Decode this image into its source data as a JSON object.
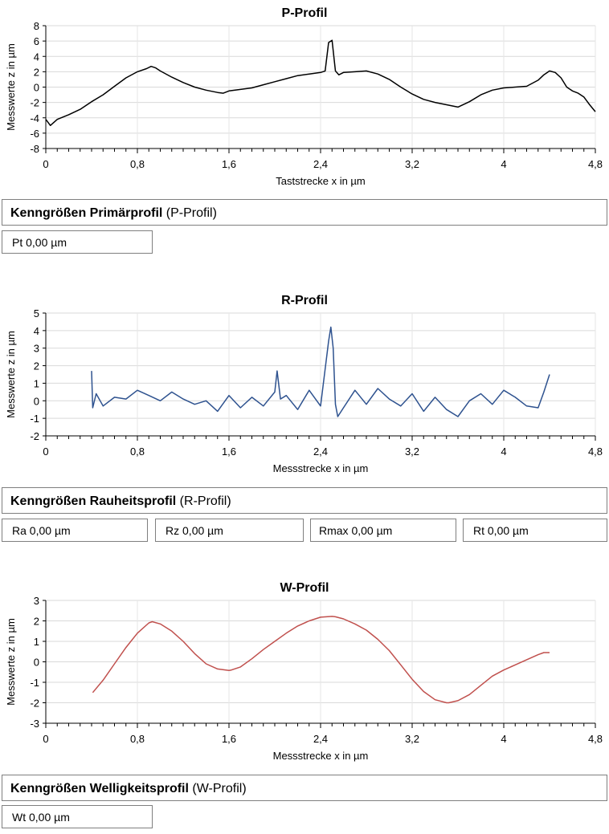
{
  "chart_data": [
    {
      "type": "line",
      "title": "P-Profil",
      "xlabel": "Taststrecke x in µm",
      "ylabel": "Messwerte z in µm",
      "xlim": [
        0,
        4.8
      ],
      "ylim": [
        -8,
        8
      ],
      "x_ticks": [
        "0",
        "0,8",
        "1,6",
        "2,4",
        "3,2",
        "4",
        "4,8"
      ],
      "y_ticks": [
        "8",
        "6",
        "4",
        "2",
        "0",
        "-2",
        "-4",
        "-6",
        "-8"
      ],
      "grid": "horizontal",
      "series": [
        {
          "color": "#000000",
          "x": [
            0.0,
            0.04,
            0.1,
            0.2,
            0.3,
            0.4,
            0.5,
            0.6,
            0.7,
            0.8,
            0.88,
            0.92,
            0.96,
            1.0,
            1.1,
            1.2,
            1.3,
            1.4,
            1.5,
            1.55,
            1.6,
            1.7,
            1.8,
            1.9,
            2.0,
            2.1,
            2.2,
            2.3,
            2.4,
            2.44,
            2.47,
            2.5,
            2.53,
            2.56,
            2.6,
            2.7,
            2.8,
            2.9,
            3.0,
            3.1,
            3.2,
            3.3,
            3.4,
            3.5,
            3.6,
            3.7,
            3.8,
            3.9,
            4.0,
            4.1,
            4.2,
            4.3,
            4.35,
            4.4,
            4.45,
            4.5,
            4.55,
            4.6,
            4.65,
            4.7,
            4.75,
            4.8
          ],
          "y": [
            -4.2,
            -5.0,
            -4.2,
            -3.6,
            -2.9,
            -1.9,
            -1.0,
            0.1,
            1.2,
            2.0,
            2.4,
            2.7,
            2.5,
            2.1,
            1.3,
            0.6,
            0.0,
            -0.4,
            -0.7,
            -0.8,
            -0.5,
            -0.3,
            -0.1,
            0.3,
            0.7,
            1.1,
            1.5,
            1.7,
            1.9,
            2.1,
            5.8,
            6.1,
            2.1,
            1.6,
            1.9,
            2.0,
            2.1,
            1.7,
            1.0,
            0.0,
            -0.9,
            -1.6,
            -2.0,
            -2.3,
            -2.6,
            -1.9,
            -1.0,
            -0.4,
            -0.1,
            0.0,
            0.1,
            0.9,
            1.6,
            2.1,
            1.9,
            1.2,
            0.0,
            -0.5,
            -0.8,
            -1.3,
            -2.3,
            -3.2
          ]
        }
      ]
    },
    {
      "type": "line",
      "title": "R-Profil",
      "xlabel": "Messstrecke x in µm",
      "ylabel": "Messwerte z in µm",
      "xlim": [
        0,
        4.8
      ],
      "ylim": [
        -2,
        5
      ],
      "x_ticks": [
        "0",
        "0,8",
        "1,6",
        "2,4",
        "3,2",
        "4",
        "4,8"
      ],
      "y_ticks": [
        "5",
        "4",
        "3",
        "2",
        "1",
        "0",
        "-1",
        "-2"
      ],
      "grid": "horizontal",
      "series": [
        {
          "color": "#2e528f",
          "x": [
            0.4,
            0.41,
            0.44,
            0.5,
            0.6,
            0.7,
            0.8,
            0.9,
            1.0,
            1.1,
            1.2,
            1.3,
            1.4,
            1.5,
            1.6,
            1.7,
            1.8,
            1.9,
            2.0,
            2.02,
            2.05,
            2.1,
            2.2,
            2.3,
            2.4,
            2.47,
            2.49,
            2.51,
            2.53,
            2.55,
            2.6,
            2.7,
            2.8,
            2.9,
            3.0,
            3.1,
            3.2,
            3.3,
            3.4,
            3.5,
            3.6,
            3.7,
            3.8,
            3.9,
            4.0,
            4.1,
            4.2,
            4.3,
            4.35,
            4.4
          ],
          "y": [
            1.7,
            -0.4,
            0.4,
            -0.3,
            0.2,
            0.1,
            0.6,
            0.3,
            0.0,
            0.5,
            0.1,
            -0.2,
            0.0,
            -0.6,
            0.3,
            -0.4,
            0.2,
            -0.3,
            0.5,
            1.7,
            0.1,
            0.3,
            -0.5,
            0.6,
            -0.3,
            3.4,
            4.2,
            3.0,
            -0.2,
            -0.9,
            -0.4,
            0.6,
            -0.2,
            0.7,
            0.1,
            -0.3,
            0.4,
            -0.6,
            0.2,
            -0.5,
            -0.9,
            0.0,
            0.4,
            -0.2,
            0.6,
            0.2,
            -0.3,
            -0.4,
            0.5,
            1.5
          ]
        }
      ]
    },
    {
      "type": "line",
      "title": "W-Profil",
      "xlabel": "Messstrecke x in µm",
      "ylabel": "Messwerte z in µm",
      "xlim": [
        0,
        4.8
      ],
      "ylim": [
        -3,
        3
      ],
      "x_ticks": [
        "0",
        "0,8",
        "1,6",
        "2,4",
        "3,2",
        "4",
        "4,8"
      ],
      "y_ticks": [
        "3",
        "2",
        "1",
        "0",
        "-1",
        "-2",
        "-3"
      ],
      "grid": "horizontal",
      "series": [
        {
          "color": "#c0504d",
          "x": [
            0.41,
            0.5,
            0.6,
            0.7,
            0.8,
            0.9,
            0.93,
            1.0,
            1.1,
            1.2,
            1.3,
            1.4,
            1.5,
            1.6,
            1.62,
            1.7,
            1.8,
            1.9,
            2.0,
            2.1,
            2.2,
            2.3,
            2.4,
            2.5,
            2.53,
            2.6,
            2.7,
            2.8,
            2.9,
            3.0,
            3.1,
            3.2,
            3.3,
            3.4,
            3.5,
            3.52,
            3.6,
            3.7,
            3.8,
            3.9,
            4.0,
            4.1,
            4.2,
            4.3,
            4.35,
            4.4
          ],
          "y": [
            -1.5,
            -0.9,
            -0.1,
            0.7,
            1.4,
            1.9,
            1.96,
            1.85,
            1.5,
            1.0,
            0.4,
            -0.1,
            -0.35,
            -0.42,
            -0.4,
            -0.25,
            0.15,
            0.6,
            1.0,
            1.4,
            1.75,
            2.0,
            2.18,
            2.22,
            2.2,
            2.1,
            1.85,
            1.55,
            1.1,
            0.55,
            -0.15,
            -0.85,
            -1.45,
            -1.85,
            -2.0,
            -2.0,
            -1.9,
            -1.6,
            -1.15,
            -0.7,
            -0.4,
            -0.15,
            0.1,
            0.35,
            0.45,
            0.45
          ]
        }
      ]
    }
  ],
  "sections": [
    {
      "header_bold": "Kenngrößen Primärprofil",
      "header_rest": " (P-Profil)",
      "boxes": [
        {
          "label": "Pt",
          "value": "0,00",
          "unit": "µm"
        }
      ]
    },
    {
      "header_bold": "Kenngrößen Rauheitsprofil",
      "header_rest": " (R-Profil)",
      "boxes": [
        {
          "label": "Ra",
          "value": "0,00",
          "unit": "µm"
        },
        {
          "label": "Rz",
          "value": "0,00",
          "unit": "µm"
        },
        {
          "label": "Rmax",
          "value": "0,00",
          "unit": "µm"
        },
        {
          "label": "Rt",
          "value": "0,00",
          "unit": "µm"
        }
      ]
    },
    {
      "header_bold": "Kenngrößen Welligkeitsprofil",
      "header_rest": " (W-Profil)",
      "boxes": [
        {
          "label": "Wt",
          "value": "0,00",
          "unit": "µm"
        }
      ]
    }
  ]
}
